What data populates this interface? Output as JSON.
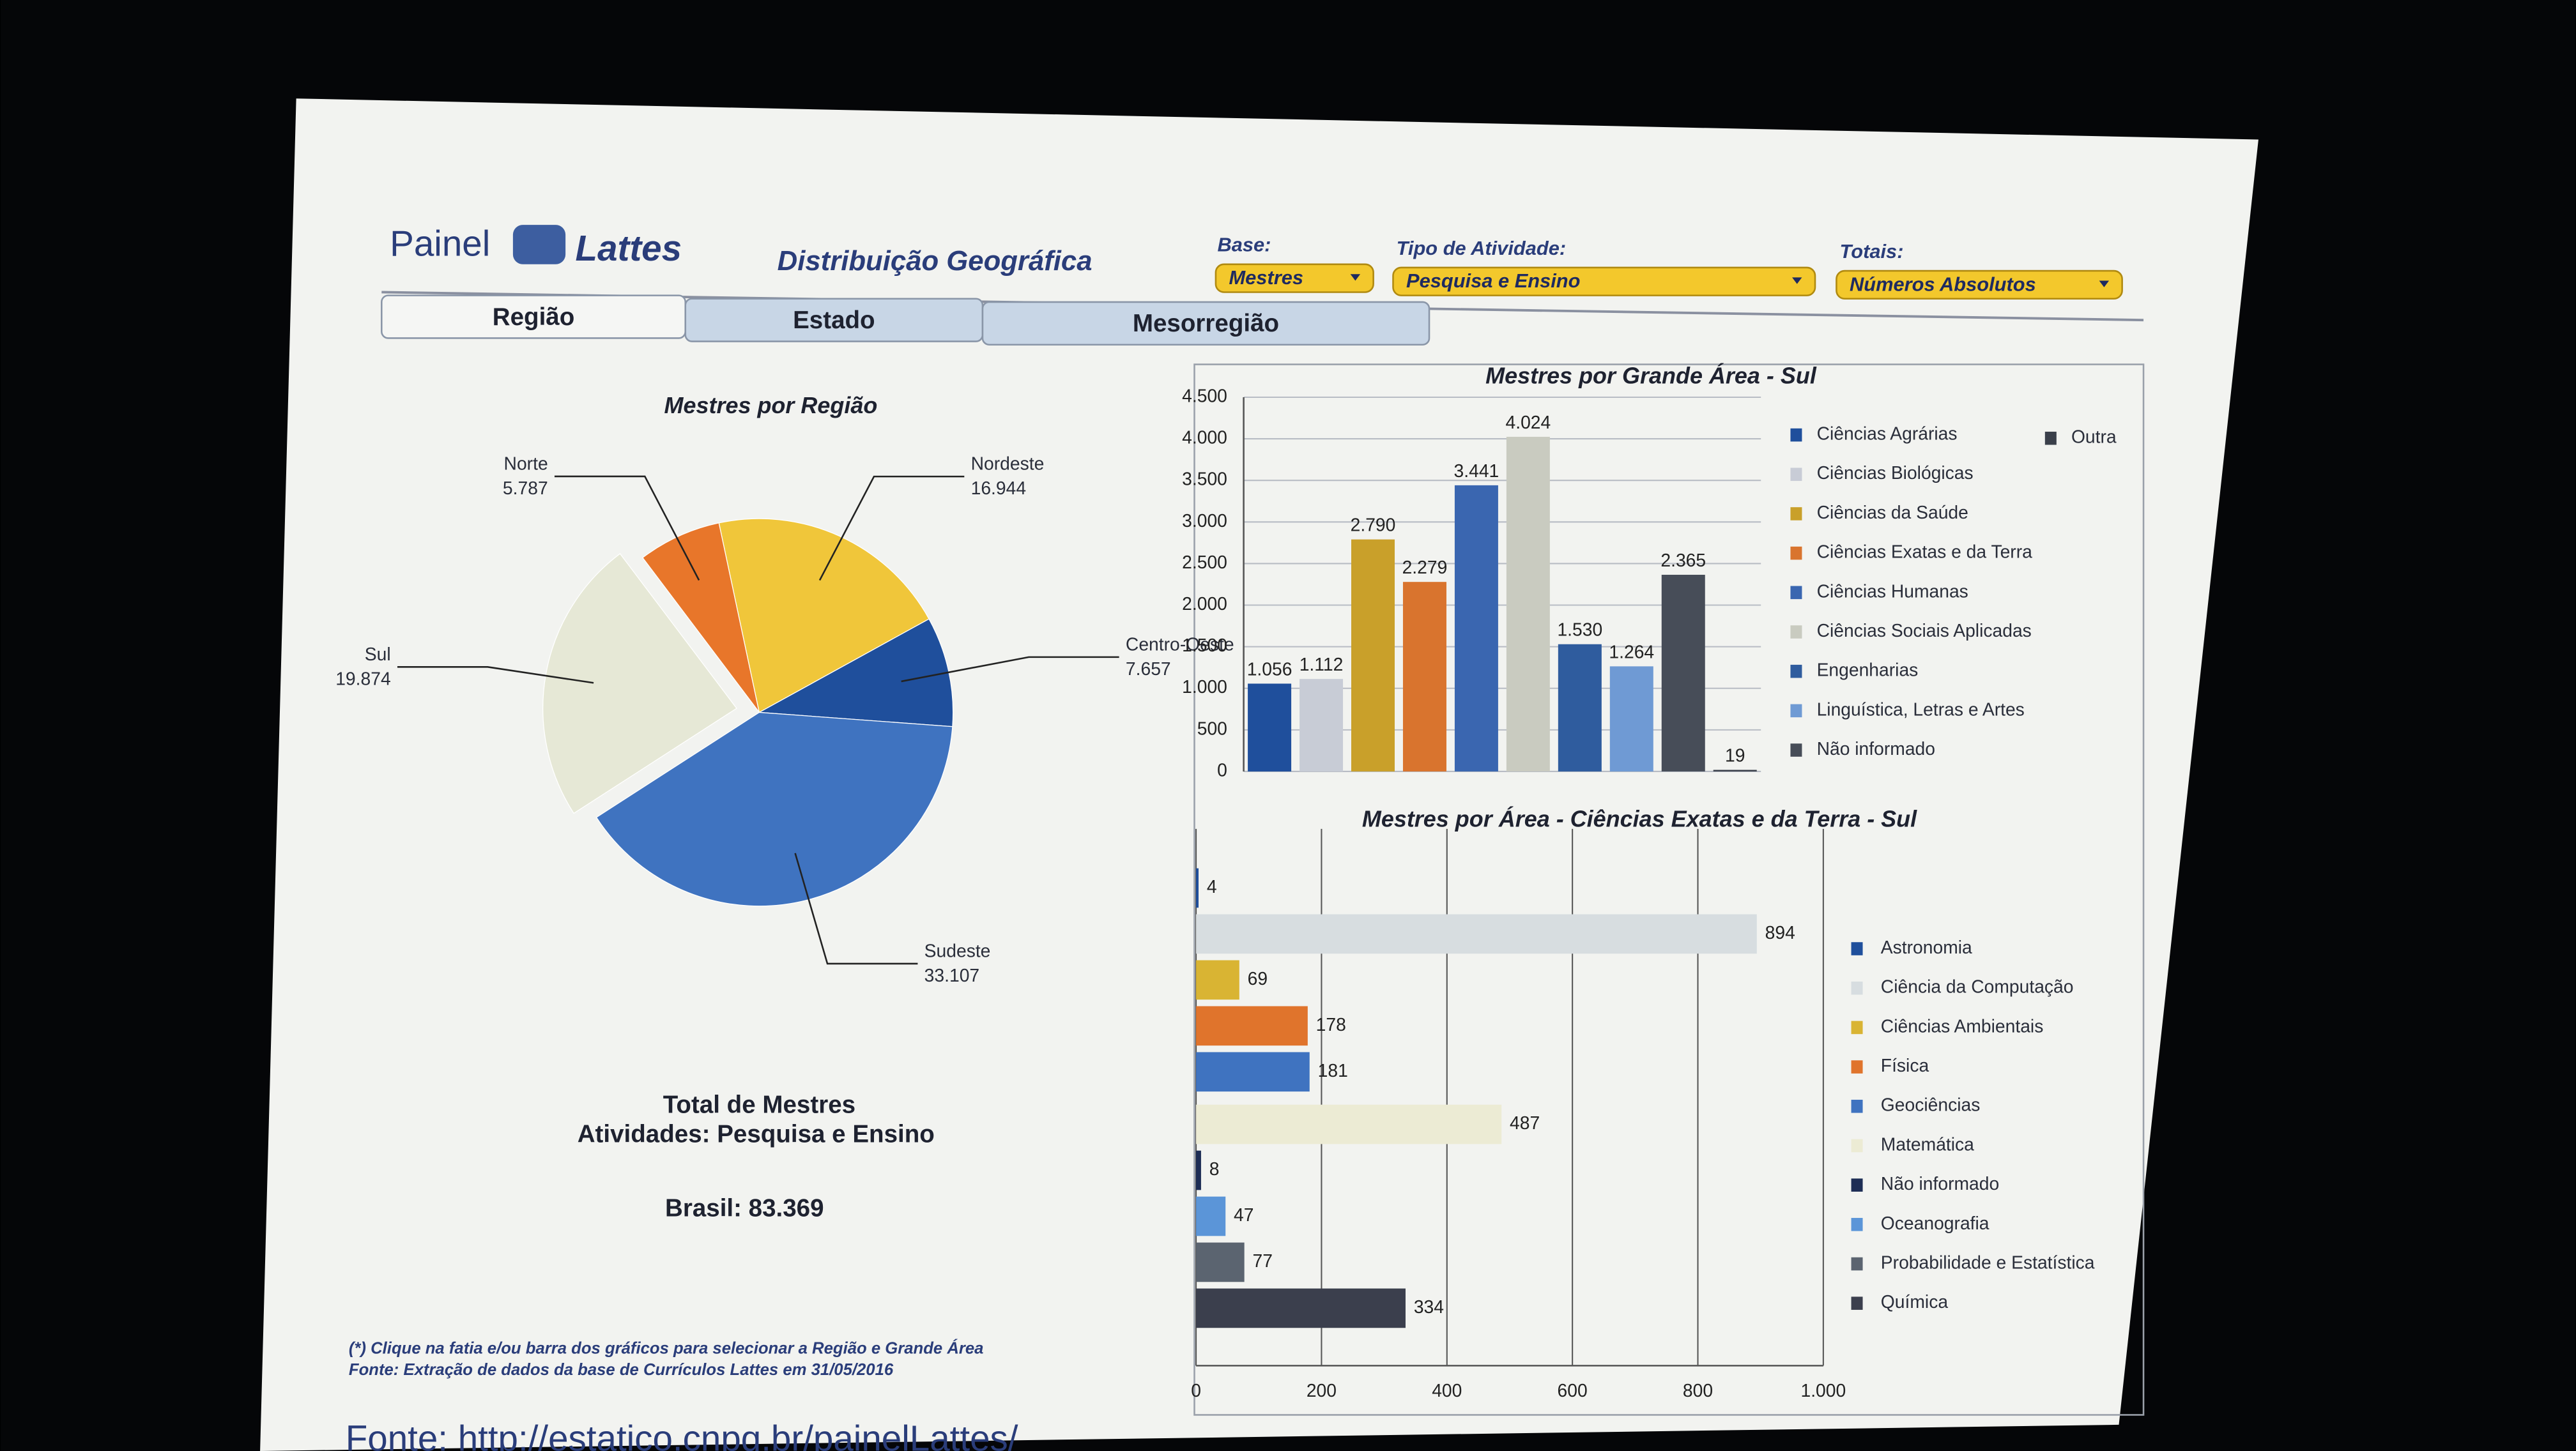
{
  "header": {
    "brand": "Painel",
    "brand_logo_text": "Lattes",
    "title": "Distribuição Geográfica"
  },
  "controls": [
    {
      "label": "Base:",
      "value": "Mestres"
    },
    {
      "label": "Tipo de Atividade:",
      "value": "Pesquisa e Ensino"
    },
    {
      "label": "Totais:",
      "value": "Números Absolutos"
    }
  ],
  "tabs": [
    "Região",
    "Estado",
    "Mesorregião"
  ],
  "summary": {
    "title": "Total de Mestres",
    "subtitle": "Atividades: Pesquisa e Ensino",
    "total": "Brasil: 83.369"
  },
  "notes": [
    "(*) Clique na fatia e/ou barra dos gráficos para selecionar a Região e Grande Área",
    "Fonte: Extração de dados da base de Currículos Lattes em 31/05/2016"
  ],
  "caption": "Fonte: http://estatico.cnpq.br/painelLattes/",
  "chart_data": [
    {
      "type": "pie",
      "title": "Mestres por Região",
      "categories": [
        "Norte",
        "Nordeste",
        "Centro-Oeste",
        "Sudeste",
        "Sul"
      ],
      "values": [
        5787,
        16944,
        7657,
        33107,
        19874
      ],
      "value_labels": [
        "5.787",
        "16.944",
        "7.657",
        "33.107",
        "19.874"
      ],
      "colors": [
        "#e8762a",
        "#f0c63a",
        "#1f4f9c",
        "#3f73c0",
        "#e6e8d6"
      ]
    },
    {
      "type": "bar",
      "title": "Mestres por Grande Área - Sul",
      "categories": [
        "Ciências Agrárias",
        "Ciências Biológicas",
        "Ciências da Saúde",
        "Ciências Exatas e da Terra",
        "Ciências Humanas",
        "Ciências Sociais Aplicadas",
        "Engenharias",
        "Linguística, Letras e Artes",
        "Não informado",
        "Outra"
      ],
      "values": [
        1056,
        1112,
        2790,
        2279,
        3441,
        4024,
        1530,
        1264,
        2365,
        19
      ],
      "value_labels": [
        "1.056",
        "1.112",
        "2.790",
        "2.279",
        "3.441",
        "4.024",
        "1.530",
        "1.264",
        "2.365",
        "19"
      ],
      "colors": [
        "#1f4f9c",
        "#c8ccd6",
        "#c9a02a",
        "#d9742e",
        "#3a66b0",
        "#c9cbc0",
        "#2f5c9e",
        "#6f9ad4",
        "#474d58",
        "#3a3f4a"
      ],
      "ylim": [
        0,
        4500
      ],
      "yticks": [
        0,
        500,
        {
          "value": 1000,
          "label": "1.000"
        },
        {
          "value": 1500,
          "label": "1.500"
        },
        {
          "value": 2000,
          "label": "2.000"
        },
        {
          "value": 2500,
          "label": "2.500"
        },
        {
          "value": 3000,
          "label": "3.000"
        },
        {
          "value": 3500,
          "label": "3.500"
        },
        {
          "value": 4000,
          "label": "4.000"
        },
        {
          "value": 4500,
          "label": "4.500"
        }
      ],
      "grid": true
    },
    {
      "type": "hbar",
      "title": "Mestres por Área - Ciências Exatas e da Terra - Sul",
      "categories": [
        "Astronomia",
        "Ciência da Computação",
        "Ciências Ambientais",
        "Física",
        "Geociências",
        "Matemática",
        "Não informado",
        "Oceanografia",
        "Probabilidade e Estatística",
        "Química"
      ],
      "values": [
        4,
        894,
        69,
        178,
        181,
        487,
        8,
        47,
        77,
        334
      ],
      "colors": [
        "#1f4f9c",
        "#d7dde0",
        "#d9b433",
        "#e0742c",
        "#3f73c0",
        "#ecebd4",
        "#1d2d55",
        "#5b95d8",
        "#5b6470",
        "#3b3f4d"
      ],
      "xlim": [
        0,
        1000
      ],
      "xticks": [
        0,
        200,
        400,
        600,
        800,
        {
          "value": 1000,
          "label": "1.000"
        }
      ],
      "grid": true
    }
  ]
}
